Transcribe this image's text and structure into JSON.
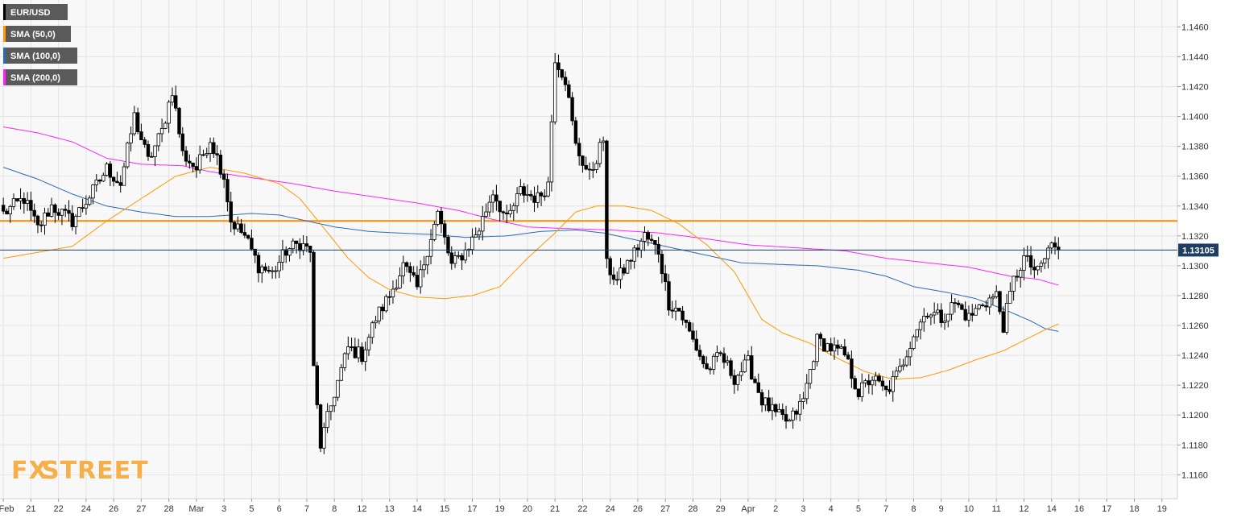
{
  "watermark": {
    "part1": "FX",
    "part2": "STREET",
    "color": "#f5b04a",
    "color_dark": "#9a9a9a"
  },
  "colors": {
    "background": "#ffffff",
    "plot_bg": "#f8f8f8",
    "grid": "#e3e3e3",
    "candle_up": "#ffffff",
    "candle_down": "#000000",
    "sma50": "#ff9900",
    "sma100": "#2a6ab8",
    "sma200": "#ff22ff",
    "resistance": "#ff8c00",
    "price_line": "#1f3c63",
    "price_tag": "#1f3c63"
  },
  "chart_data": {
    "type": "candlestick",
    "symbol": "EUR/USD",
    "legend": [
      {
        "label": "EUR/USD",
        "color": "#000000"
      },
      {
        "label": "SMA (50,0)",
        "color": "#ff9900"
      },
      {
        "label": "SMA (100,0)",
        "color": "#2a6ab8"
      },
      {
        "label": "SMA (200,0)",
        "color": "#ff22ff"
      }
    ],
    "ylim": [
      1.1144,
      1.1478
    ],
    "yticks": [
      1.116,
      1.118,
      1.12,
      1.122,
      1.124,
      1.126,
      1.128,
      1.13,
      1.132,
      1.134,
      1.136,
      1.138,
      1.14,
      1.142,
      1.144,
      1.146
    ],
    "ytick_labels": [
      "1.1160",
      "1.1180",
      "1.1200",
      "1.1220",
      "1.1240",
      "1.1260",
      "1.1280",
      "1.1300",
      "1.1320",
      "1.1340",
      "1.1360",
      "1.1380",
      "1.1400",
      "1.1420",
      "1.1440",
      "1.1460"
    ],
    "xticks": [
      {
        "label": "Feb",
        "i": 0
      },
      {
        "label": "21",
        "i": 8
      },
      {
        "label": "22",
        "i": 16
      },
      {
        "label": "24",
        "i": 24
      },
      {
        "label": "26",
        "i": 32
      },
      {
        "label": "27",
        "i": 40
      },
      {
        "label": "28",
        "i": 48
      },
      {
        "label": "Mar",
        "i": 56
      },
      {
        "label": "3",
        "i": 64
      },
      {
        "label": "5",
        "i": 72
      },
      {
        "label": "6",
        "i": 80
      },
      {
        "label": "7",
        "i": 88
      },
      {
        "label": "8",
        "i": 96
      },
      {
        "label": "12",
        "i": 104
      },
      {
        "label": "13",
        "i": 112
      },
      {
        "label": "14",
        "i": 120
      },
      {
        "label": "15",
        "i": 128
      },
      {
        "label": "17",
        "i": 136
      },
      {
        "label": "19",
        "i": 144
      },
      {
        "label": "20",
        "i": 152
      },
      {
        "label": "21",
        "i": 160
      },
      {
        "label": "22",
        "i": 168
      },
      {
        "label": "24",
        "i": 176
      },
      {
        "label": "26",
        "i": 184
      },
      {
        "label": "27",
        "i": 192
      },
      {
        "label": "28",
        "i": 200
      },
      {
        "label": "29",
        "i": 208
      },
      {
        "label": "Apr",
        "i": 216
      },
      {
        "label": "2",
        "i": 224
      },
      {
        "label": "3",
        "i": 232
      },
      {
        "label": "4",
        "i": 240
      },
      {
        "label": "5",
        "i": 248
      },
      {
        "label": "7",
        "i": 256
      },
      {
        "label": "8",
        "i": 264
      },
      {
        "label": "9",
        "i": 272
      },
      {
        "label": "10",
        "i": 280
      },
      {
        "label": "11",
        "i": 288
      },
      {
        "label": "12",
        "i": 296
      },
      {
        "label": "14",
        "i": 304
      },
      {
        "label": "16",
        "i": 312
      },
      {
        "label": "17",
        "i": 320
      },
      {
        "label": "18",
        "i": 328
      },
      {
        "label": "19",
        "i": 336
      }
    ],
    "n_slots": 341,
    "anchors": [
      [
        0,
        1.1335
      ],
      [
        6,
        1.1345
      ],
      [
        10,
        1.1325
      ],
      [
        14,
        1.134
      ],
      [
        20,
        1.133
      ],
      [
        26,
        1.135
      ],
      [
        30,
        1.1365
      ],
      [
        34,
        1.1355
      ],
      [
        38,
        1.14
      ],
      [
        42,
        1.137
      ],
      [
        46,
        1.139
      ],
      [
        49,
        1.1418
      ],
      [
        52,
        1.1375
      ],
      [
        56,
        1.1365
      ],
      [
        60,
        1.1385
      ],
      [
        64,
        1.136
      ],
      [
        66,
        1.133
      ],
      [
        70,
        1.132
      ],
      [
        74,
        1.13
      ],
      [
        78,
        1.1295
      ],
      [
        82,
        1.131
      ],
      [
        86,
        1.1315
      ],
      [
        89,
        1.131
      ],
      [
        90,
        1.123
      ],
      [
        92,
        1.118
      ],
      [
        96,
        1.1215
      ],
      [
        100,
        1.1245
      ],
      [
        104,
        1.124
      ],
      [
        108,
        1.1265
      ],
      [
        112,
        1.128
      ],
      [
        116,
        1.13
      ],
      [
        120,
        1.1285
      ],
      [
        124,
        1.132
      ],
      [
        126,
        1.1335
      ],
      [
        130,
        1.13
      ],
      [
        134,
        1.131
      ],
      [
        138,
        1.1325
      ],
      [
        142,
        1.135
      ],
      [
        146,
        1.133
      ],
      [
        150,
        1.135
      ],
      [
        155,
        1.1345
      ],
      [
        158,
        1.1355
      ],
      [
        160,
        1.144
      ],
      [
        163,
        1.1425
      ],
      [
        166,
        1.138
      ],
      [
        170,
        1.136
      ],
      [
        174,
        1.1385
      ],
      [
        175,
        1.13
      ],
      [
        178,
        1.129
      ],
      [
        182,
        1.1305
      ],
      [
        186,
        1.132
      ],
      [
        190,
        1.131
      ],
      [
        193,
        1.1275
      ],
      [
        196,
        1.127
      ],
      [
        200,
        1.125
      ],
      [
        204,
        1.123
      ],
      [
        208,
        1.124
      ],
      [
        212,
        1.1225
      ],
      [
        216,
        1.1235
      ],
      [
        220,
        1.121
      ],
      [
        224,
        1.12
      ],
      [
        228,
        1.1195
      ],
      [
        232,
        1.121
      ],
      [
        236,
        1.125
      ],
      [
        240,
        1.1245
      ],
      [
        244,
        1.124
      ],
      [
        248,
        1.1215
      ],
      [
        252,
        1.1225
      ],
      [
        256,
        1.1215
      ],
      [
        260,
        1.123
      ],
      [
        264,
        1.1255
      ],
      [
        268,
        1.127
      ],
      [
        272,
        1.1265
      ],
      [
        276,
        1.1275
      ],
      [
        280,
        1.1265
      ],
      [
        284,
        1.1275
      ],
      [
        288,
        1.128
      ],
      [
        290,
        1.126
      ],
      [
        293,
        1.129
      ],
      [
        296,
        1.1305
      ],
      [
        300,
        1.1295
      ],
      [
        304,
        1.1315
      ],
      [
        306,
        1.131
      ]
    ],
    "sma50_anchors": [
      [
        0,
        1.1305
      ],
      [
        20,
        1.1313
      ],
      [
        30,
        1.133
      ],
      [
        40,
        1.1345
      ],
      [
        50,
        1.136
      ],
      [
        60,
        1.1366
      ],
      [
        70,
        1.1362
      ],
      [
        80,
        1.1355
      ],
      [
        86,
        1.1345
      ],
      [
        92,
        1.1328
      ],
      [
        100,
        1.1305
      ],
      [
        106,
        1.1292
      ],
      [
        112,
        1.1284
      ],
      [
        120,
        1.1279
      ],
      [
        128,
        1.1278
      ],
      [
        136,
        1.128
      ],
      [
        144,
        1.1286
      ],
      [
        152,
        1.1305
      ],
      [
        160,
        1.1322
      ],
      [
        166,
        1.1336
      ],
      [
        172,
        1.134
      ],
      [
        180,
        1.134
      ],
      [
        188,
        1.1337
      ],
      [
        196,
        1.1328
      ],
      [
        204,
        1.1314
      ],
      [
        212,
        1.1296
      ],
      [
        216,
        1.128
      ],
      [
        220,
        1.1264
      ],
      [
        226,
        1.1255
      ],
      [
        234,
        1.1248
      ],
      [
        242,
        1.1238
      ],
      [
        250,
        1.1229
      ],
      [
        258,
        1.1224
      ],
      [
        266,
        1.1225
      ],
      [
        274,
        1.123
      ],
      [
        282,
        1.1237
      ],
      [
        290,
        1.1243
      ],
      [
        296,
        1.125
      ],
      [
        302,
        1.1257
      ],
      [
        306,
        1.1261
      ]
    ],
    "sma100_anchors": [
      [
        0,
        1.1366
      ],
      [
        10,
        1.1358
      ],
      [
        20,
        1.1348
      ],
      [
        30,
        1.134
      ],
      [
        40,
        1.1336
      ],
      [
        50,
        1.1333
      ],
      [
        60,
        1.1333
      ],
      [
        72,
        1.1335
      ],
      [
        80,
        1.1334
      ],
      [
        88,
        1.133
      ],
      [
        96,
        1.1326
      ],
      [
        106,
        1.1323
      ],
      [
        114,
        1.1322
      ],
      [
        124,
        1.1321
      ],
      [
        134,
        1.1319
      ],
      [
        146,
        1.132
      ],
      [
        156,
        1.1323
      ],
      [
        166,
        1.1324
      ],
      [
        174,
        1.1322
      ],
      [
        184,
        1.1317
      ],
      [
        192,
        1.1313
      ],
      [
        204,
        1.1307
      ],
      [
        214,
        1.1302
      ],
      [
        224,
        1.1301
      ],
      [
        236,
        1.13
      ],
      [
        248,
        1.1297
      ],
      [
        256,
        1.1293
      ],
      [
        264,
        1.1286
      ],
      [
        274,
        1.1282
      ],
      [
        282,
        1.1278
      ],
      [
        290,
        1.1271
      ],
      [
        298,
        1.1263
      ],
      [
        302,
        1.1258
      ],
      [
        306,
        1.1256
      ]
    ],
    "sma200_anchors": [
      [
        0,
        1.1393
      ],
      [
        10,
        1.1389
      ],
      [
        20,
        1.1383
      ],
      [
        30,
        1.1372
      ],
      [
        40,
        1.1368
      ],
      [
        52,
        1.1367
      ],
      [
        60,
        1.1363
      ],
      [
        72,
        1.1359
      ],
      [
        84,
        1.1355
      ],
      [
        96,
        1.135
      ],
      [
        108,
        1.1346
      ],
      [
        120,
        1.1342
      ],
      [
        132,
        1.1337
      ],
      [
        142,
        1.1331
      ],
      [
        152,
        1.1326
      ],
      [
        162,
        1.1325
      ],
      [
        176,
        1.1324
      ],
      [
        190,
        1.1322
      ],
      [
        204,
        1.1318
      ],
      [
        216,
        1.1314
      ],
      [
        230,
        1.1312
      ],
      [
        244,
        1.131
      ],
      [
        256,
        1.1305
      ],
      [
        268,
        1.1302
      ],
      [
        280,
        1.1299
      ],
      [
        292,
        1.1293
      ],
      [
        300,
        1.1291
      ],
      [
        306,
        1.1287
      ]
    ],
    "resistance_level": 1.133,
    "last_price": 1.13105,
    "last_price_label": "1.13105"
  }
}
